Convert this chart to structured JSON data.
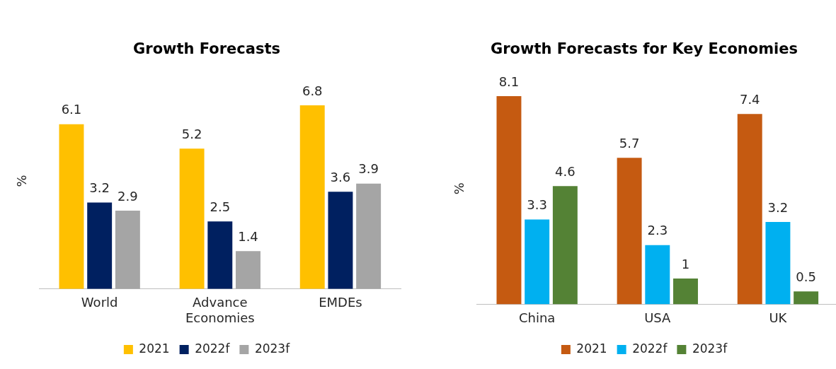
{
  "chart_data": [
    {
      "type": "bar",
      "title": "Growth Forecasts",
      "ylabel": "%",
      "categories": [
        "World",
        "Advance Economies",
        "EMDEs"
      ],
      "series": [
        {
          "name": "2021",
          "color": "#ffc000",
          "values": [
            6.1,
            5.2,
            6.8
          ]
        },
        {
          "name": "2022f",
          "color": "#002060",
          "values": [
            3.2,
            2.5,
            3.6
          ]
        },
        {
          "name": "2023f",
          "color": "#a5a5a5",
          "values": [
            2.9,
            1.4,
            3.9
          ]
        }
      ],
      "data_labels": true,
      "legend": "bottom",
      "grid": false
    },
    {
      "type": "bar",
      "title": "Growth Forecasts for Key Economies",
      "ylabel": "%",
      "categories": [
        "China",
        "USA",
        "UK"
      ],
      "series": [
        {
          "name": "2021",
          "color": "#c55a11",
          "values": [
            8.1,
            5.7,
            7.4
          ]
        },
        {
          "name": "2022f",
          "color": "#00b0f0",
          "values": [
            3.3,
            2.3,
            3.2
          ]
        },
        {
          "name": "2023f",
          "color": "#548235",
          "values": [
            4.6,
            1,
            0.5
          ]
        }
      ],
      "data_labels": true,
      "legend": "bottom",
      "grid": false
    }
  ]
}
